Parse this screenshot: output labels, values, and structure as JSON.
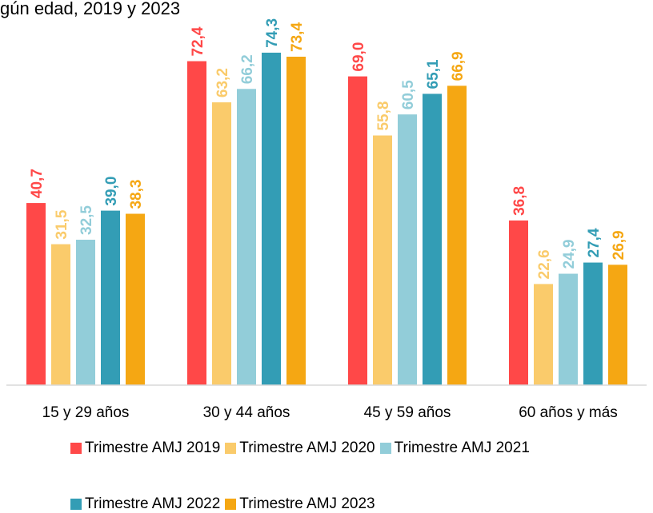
{
  "header": {
    "title_fragment": "gún edad, 2019 y 2023"
  },
  "chart_data": {
    "type": "bar",
    "categories": [
      "15 y 29 años",
      "30 y 44 años",
      "45 y 59 años",
      "60 años y más"
    ],
    "series": [
      {
        "name": "Trimestre AMJ 2019",
        "color": "#FF4848",
        "values": [
          40.7,
          72.4,
          69.0,
          36.8
        ],
        "labels": [
          "40,7",
          "72,4",
          "69,0",
          "36,8"
        ]
      },
      {
        "name": "Trimestre AMJ 2020",
        "color": "#FACB6B",
        "values": [
          31.5,
          63.2,
          55.8,
          22.6
        ],
        "labels": [
          "31,5",
          "63,2",
          "55,8",
          "22,6"
        ]
      },
      {
        "name": "Trimestre AMJ 2021",
        "color": "#92CDD9",
        "values": [
          32.5,
          66.2,
          60.5,
          24.9
        ],
        "labels": [
          "32,5",
          "66,2",
          "60,5",
          "24,9"
        ]
      },
      {
        "name": "Trimestre AMJ 2022",
        "color": "#339DB5",
        "values": [
          39.0,
          74.3,
          65.1,
          27.4
        ],
        "labels": [
          "39,0",
          "74,3",
          "65,1",
          "27,4"
        ]
      },
      {
        "name": "Trimestre AMJ 2023",
        "color": "#F5A713",
        "values": [
          38.3,
          73.4,
          66.9,
          26.9
        ],
        "labels": [
          "38,3",
          "73,4",
          "66,9",
          "26,9"
        ]
      }
    ],
    "ylim": [
      0,
      80
    ],
    "grid": false,
    "legend_position": "bottom"
  }
}
